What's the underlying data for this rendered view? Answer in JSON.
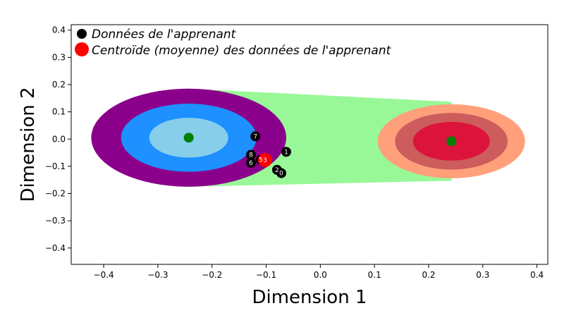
{
  "chart_data": {
    "type": "scatter",
    "title": "",
    "xlabel": "Dimension 1",
    "ylabel": "Dimension 2",
    "xlim": [
      -0.46,
      0.42
    ],
    "ylim": [
      -0.46,
      0.42
    ],
    "xticks": [
      -0.4,
      -0.3,
      -0.2,
      -0.1,
      0.0,
      0.1,
      0.2,
      0.3,
      0.4
    ],
    "yticks": [
      -0.4,
      -0.3,
      -0.2,
      -0.1,
      0.0,
      0.1,
      0.2,
      0.3,
      0.4
    ],
    "xtick_labels": [
      "−0.4",
      "−0.3",
      "−0.2",
      "−0.1",
      "0.0",
      "0.1",
      "0.2",
      "0.3",
      "0.4"
    ],
    "ytick_labels": [
      "−0.4",
      "−0.3",
      "−0.2",
      "−0.1",
      "0.0",
      "0.1",
      "0.2",
      "0.3",
      "0.4"
    ],
    "grid": false,
    "legend_position": "top-left",
    "legend": [
      {
        "label": "Données de l'apprenant",
        "color": "#000000"
      },
      {
        "label": "Centroïde (moyenne) des données de l'apprenant",
        "color": "#ff0000"
      }
    ],
    "bridge": {
      "color": "#98f898",
      "left_halfheight": 0.18,
      "right_halfheight": 0.145
    },
    "clusters": [
      {
        "center": [
          -0.243,
          0.005
        ],
        "rings": [
          {
            "rx": 0.18,
            "ry": 0.18,
            "color": "#8b008b"
          },
          {
            "rx": 0.125,
            "ry": 0.125,
            "color": "#1e90ff"
          },
          {
            "rx": 0.073,
            "ry": 0.073,
            "color": "#87ceeb"
          }
        ],
        "center_color": "#008000"
      },
      {
        "center": [
          0.242,
          -0.008
        ],
        "rings": [
          {
            "rx": 0.136,
            "ry": 0.136,
            "color": "#ffa07a"
          },
          {
            "rx": 0.104,
            "ry": 0.104,
            "color": "#cd5c5c"
          },
          {
            "rx": 0.071,
            "ry": 0.071,
            "color": "#dc143c"
          }
        ],
        "center_color": "#008000"
      }
    ],
    "learner_points": [
      {
        "label": "0",
        "x": -0.072,
        "y": -0.125
      },
      {
        "label": "1",
        "x": -0.063,
        "y": -0.047
      },
      {
        "label": "2",
        "x": -0.08,
        "y": -0.113
      },
      {
        "label": "3",
        "x": -0.102,
        "y": -0.077
      },
      {
        "label": "5",
        "x": -0.11,
        "y": -0.076
      },
      {
        "label": "6",
        "x": -0.128,
        "y": -0.087
      },
      {
        "label": "7",
        "x": -0.12,
        "y": 0.01
      },
      {
        "label": "8",
        "x": -0.128,
        "y": -0.058
      }
    ],
    "centroid": {
      "x": -0.102,
      "y": -0.077,
      "color": "#ff0000"
    }
  }
}
